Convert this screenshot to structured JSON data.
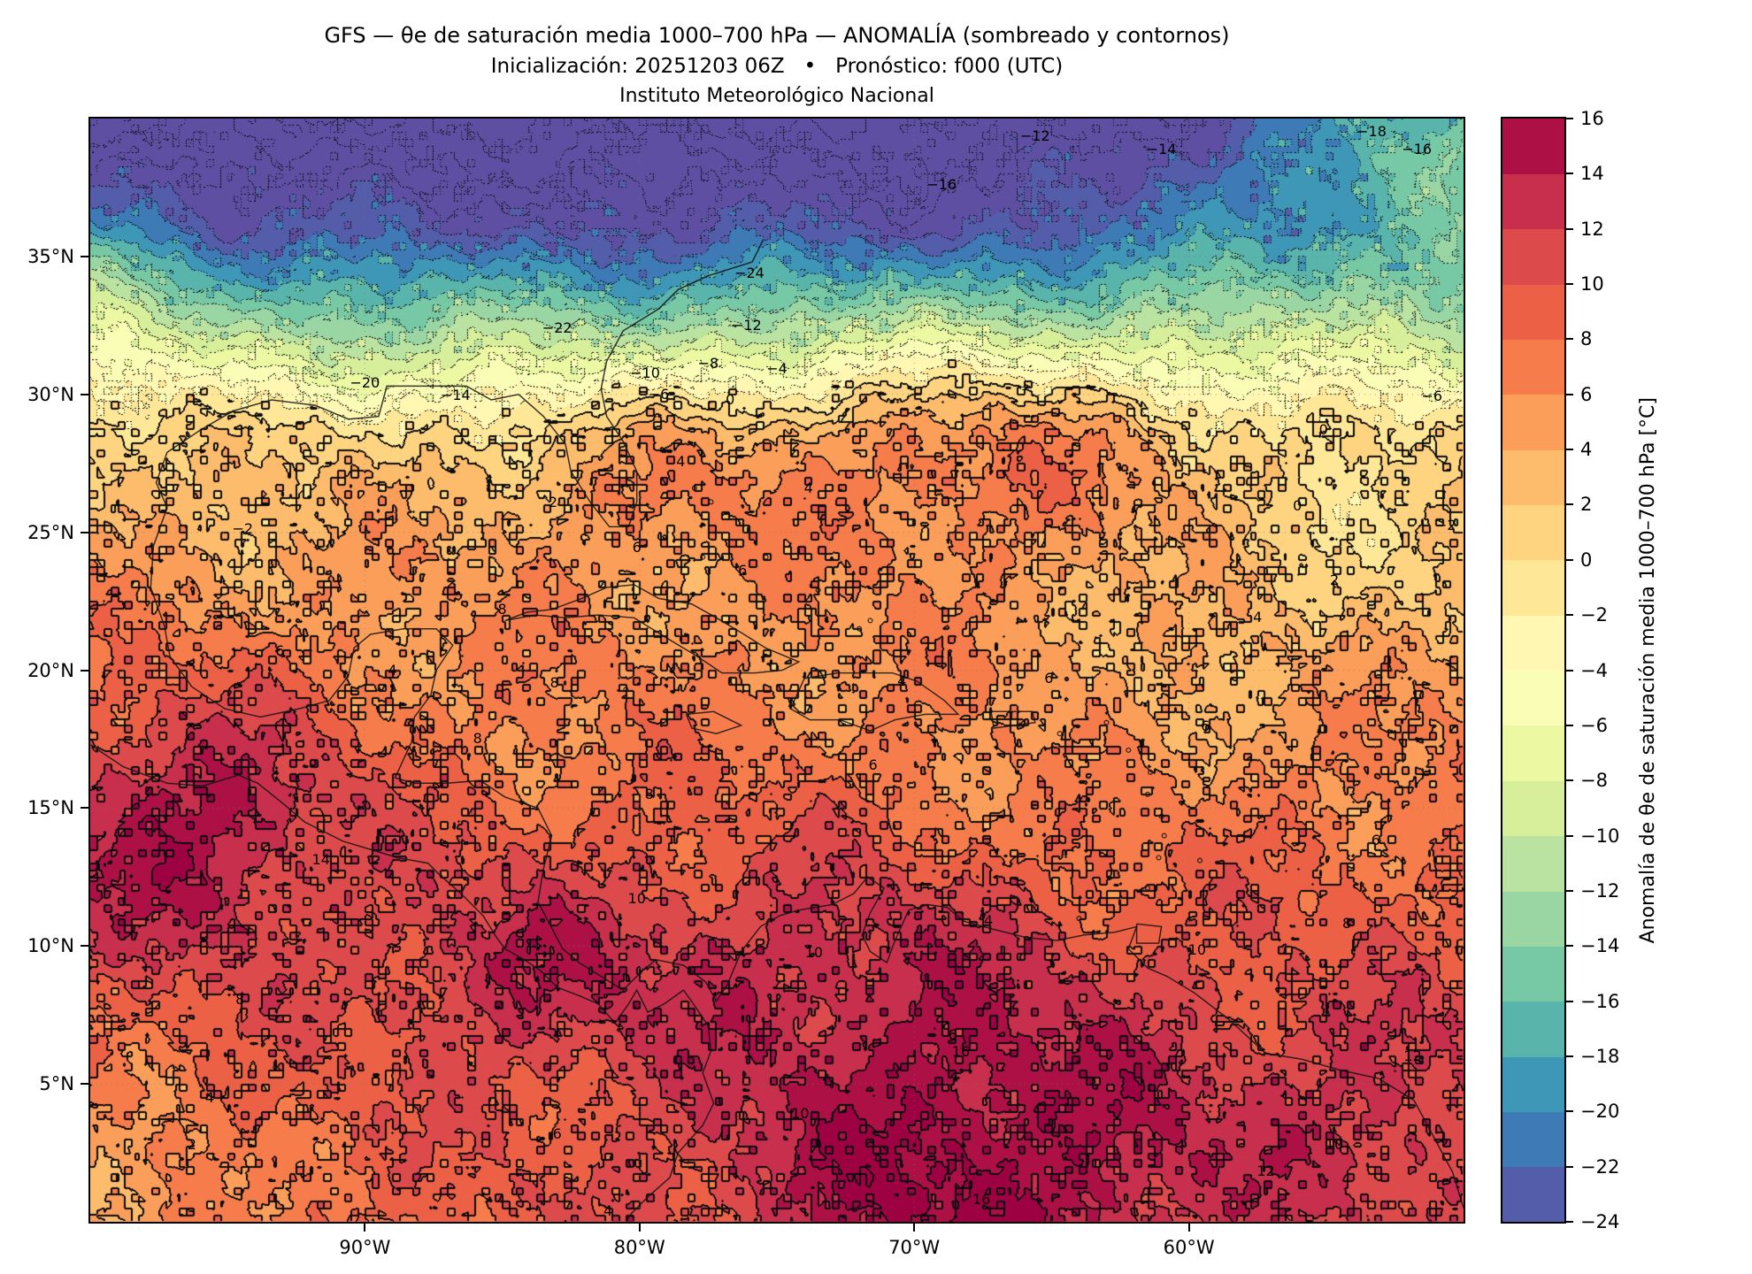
{
  "figure": {
    "title": "GFS — θe de saturación media 1000–700 hPa — ANOMALÍA (sombreado y contornos)",
    "subtitle": "Inicialización: 20251203 06Z   •   Pronóstico: f000 (UTC)",
    "institution": "Instituto Meteorológico Nacional"
  },
  "chart_data": {
    "type": "heatmap",
    "title": "GFS — θe de saturación media 1000–700 hPa — ANOMALÍA (sombreado y contornos)",
    "xlabel": "",
    "ylabel": "",
    "lon_range": [
      -100,
      -50
    ],
    "lat_range": [
      0,
      40
    ],
    "x_ticks": [
      {
        "lon": -90,
        "label": "90°W"
      },
      {
        "lon": -80,
        "label": "80°W"
      },
      {
        "lon": -70,
        "label": "70°W"
      },
      {
        "lon": -60,
        "label": "60°W"
      }
    ],
    "y_ticks": [
      {
        "lat": 35,
        "label": "35°N"
      },
      {
        "lat": 30,
        "label": "30°N"
      },
      {
        "lat": 25,
        "label": "25°N"
      },
      {
        "lat": 20,
        "label": "20°N"
      },
      {
        "lat": 15,
        "label": "15°N"
      },
      {
        "lat": 10,
        "label": "10°N"
      },
      {
        "lat": 5,
        "label": "5°N"
      }
    ],
    "contour_interval": 2,
    "levels": [
      -24,
      -22,
      -20,
      -18,
      -16,
      -14,
      -12,
      -10,
      -8,
      -6,
      -4,
      -2,
      0,
      2,
      4,
      6,
      8,
      10,
      12,
      14,
      16
    ],
    "contour_style": {
      "negative": "dotted",
      "non_negative": "solid"
    },
    "colorbar": {
      "label": "Anomalía de θe de saturación media 1000–700 hPa [°C]",
      "vmin": -24,
      "vmax": 16,
      "tick_values": [
        16,
        14,
        12,
        10,
        8,
        6,
        4,
        2,
        0,
        -2,
        -4,
        -6,
        -8,
        -10,
        -12,
        -14,
        -16,
        -18,
        -20,
        -22,
        -24
      ],
      "colormap_stops": [
        "#5e4fa2",
        "#3288bd",
        "#66c2a5",
        "#abdda4",
        "#e6f598",
        "#ffffbf",
        "#fee08b",
        "#fdae61",
        "#f46d43",
        "#d53e4f",
        "#9e0142"
      ]
    },
    "field_model": {
      "lat_profile": [
        [
          0,
          8.5
        ],
        [
          8,
          8.3
        ],
        [
          15,
          7.5
        ],
        [
          20,
          6
        ],
        [
          24,
          4.5
        ],
        [
          27,
          2.5
        ],
        [
          28.7,
          0
        ],
        [
          30,
          -4
        ],
        [
          32,
          -11
        ],
        [
          34,
          -18
        ],
        [
          36,
          -24
        ],
        [
          40,
          -30
        ]
      ],
      "blobs": [
        [
          -50,
          40,
          13,
          10,
          6
        ],
        [
          -55,
          24,
          -3.5,
          7,
          5
        ],
        [
          -63,
          17,
          -2,
          6,
          4
        ],
        [
          -96.5,
          14.5,
          8,
          6,
          5
        ],
        [
          -68,
          2,
          8,
          10,
          8
        ],
        [
          -52,
          4,
          4,
          6,
          5
        ],
        [
          -85,
          9,
          4,
          5,
          4
        ],
        [
          -76,
          10,
          3,
          9,
          4
        ],
        [
          -99.5,
          0.5,
          -5.5,
          4.5,
          3.5
        ],
        [
          -101,
          34,
          6,
          5,
          5
        ],
        [
          -80,
          27,
          2.5,
          4,
          3
        ],
        [
          -68,
          28.5,
          6,
          9,
          4
        ]
      ],
      "noise_waves": [
        [
          1.0,
          0.45,
          0.6,
          1.3
        ],
        [
          0.8,
          0.8,
          -0.5,
          4.1
        ],
        [
          0.6,
          1.5,
          1.1,
          0.7
        ],
        [
          0.5,
          2.6,
          -2.0,
          2.9
        ],
        [
          0.35,
          4.5,
          3.7,
          5.0
        ]
      ],
      "speckle": {
        "cell_deg": 0.25,
        "amp": 0.5,
        "outlier_amp": 2.7,
        "outlier_frac": 0.12
      }
    },
    "contour_labels": [
      {
        "v": "−24",
        "x": 48,
        "y": 14
      },
      {
        "v": "−22",
        "x": 34,
        "y": 19
      },
      {
        "v": "−20",
        "x": 20,
        "y": 24
      },
      {
        "v": "−18",
        "x": 93.3,
        "y": 1.2
      },
      {
        "v": "−16",
        "x": 62,
        "y": 6
      },
      {
        "v": "−16",
        "x": 96.6,
        "y": 2.8
      },
      {
        "v": "−14",
        "x": 78,
        "y": 2.8
      },
      {
        "v": "−12",
        "x": 68.8,
        "y": 1.6
      },
      {
        "v": "−12",
        "x": 47.8,
        "y": 18.8
      },
      {
        "v": "−14",
        "x": 26.6,
        "y": 25.1
      },
      {
        "v": "−10",
        "x": 40.4,
        "y": 23.1
      },
      {
        "v": "−8",
        "x": 45,
        "y": 22.2
      },
      {
        "v": "−6",
        "x": 41.4,
        "y": 25
      },
      {
        "v": "−4",
        "x": 50,
        "y": 22.7
      },
      {
        "v": "−2",
        "x": 11.1,
        "y": 37.2
      },
      {
        "v": "0",
        "x": 46.6,
        "y": 25.5
      },
      {
        "v": "−6",
        "x": 97.7,
        "y": 25.2
      },
      {
        "v": "0",
        "x": 89.8,
        "y": 28.2
      },
      {
        "v": "−2",
        "x": 98.7,
        "y": 36.9
      },
      {
        "v": "0",
        "x": 87.9,
        "y": 35.1
      },
      {
        "v": "2",
        "x": 90.6,
        "y": 41.9
      },
      {
        "v": "4",
        "x": 85,
        "y": 45.2
      },
      {
        "v": "2",
        "x": 33.7,
        "y": 34.8
      },
      {
        "v": "4",
        "x": 43,
        "y": 31.1
      },
      {
        "v": "6",
        "x": 39.8,
        "y": 38.9
      },
      {
        "v": "6",
        "x": 13.8,
        "y": 48.3
      },
      {
        "v": "4",
        "x": 22,
        "y": 50
      },
      {
        "v": "8",
        "x": 30,
        "y": 44.5
      },
      {
        "v": "8",
        "x": 33.8,
        "y": 51.2
      },
      {
        "v": "8",
        "x": 28.2,
        "y": 56.2
      },
      {
        "v": "8",
        "x": 40.7,
        "y": 61.3
      },
      {
        "v": "6",
        "x": 57,
        "y": 58.6
      },
      {
        "v": "4",
        "x": 59.1,
        "y": 51
      },
      {
        "v": "6",
        "x": 69.8,
        "y": 50.8
      },
      {
        "v": "6",
        "x": 81.2,
        "y": 55.1
      },
      {
        "v": "6",
        "x": 93.6,
        "y": 65.4
      },
      {
        "v": "14",
        "x": 16.8,
        "y": 67.2
      },
      {
        "v": "10",
        "x": 39.8,
        "y": 70.7
      },
      {
        "v": "8",
        "x": 10.9,
        "y": 79.9
      },
      {
        "v": "10",
        "x": 52.7,
        "y": 75.6
      },
      {
        "v": "4",
        "x": 65.4,
        "y": 72.7
      },
      {
        "v": "6",
        "x": 62.8,
        "y": 83.1
      },
      {
        "v": "16",
        "x": 63.4,
        "y": 84.6
      },
      {
        "v": "10",
        "x": 80.6,
        "y": 75.4
      },
      {
        "v": "12",
        "x": 96.3,
        "y": 85
      },
      {
        "v": "10",
        "x": 90.6,
        "y": 93
      },
      {
        "v": "12",
        "x": 85.6,
        "y": 95.4
      },
      {
        "v": "16",
        "x": 64.9,
        "y": 98
      },
      {
        "v": "4",
        "x": 8.7,
        "y": 88.8
      },
      {
        "v": "2",
        "x": 7.4,
        "y": 93
      },
      {
        "v": "6",
        "x": 34,
        "y": 92.1
      },
      {
        "v": "4",
        "x": 37.7,
        "y": 99
      },
      {
        "v": "10",
        "x": 51.7,
        "y": 90.2
      },
      {
        "v": "8",
        "x": 91.5,
        "y": 73
      },
      {
        "v": "6",
        "x": 47.5,
        "y": 41
      },
      {
        "v": "4",
        "x": 52.3,
        "y": 33.5
      }
    ]
  }
}
